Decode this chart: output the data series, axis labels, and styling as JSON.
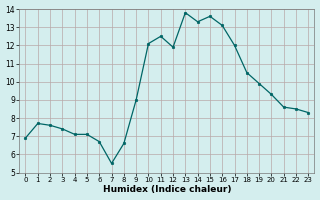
{
  "x": [
    0,
    1,
    2,
    3,
    4,
    5,
    6,
    7,
    8,
    9,
    10,
    11,
    12,
    13,
    14,
    15,
    16,
    17,
    18,
    19,
    20,
    21,
    22,
    23
  ],
  "y": [
    6.9,
    7.7,
    7.6,
    7.4,
    7.1,
    7.1,
    6.7,
    5.5,
    6.6,
    9.0,
    12.1,
    12.5,
    11.9,
    13.8,
    13.3,
    13.6,
    13.1,
    12.0,
    10.5,
    9.9,
    9.3,
    8.6,
    8.5,
    8.3
  ],
  "line_color": "#006666",
  "marker_color": "#006666",
  "bg_color": "#d4eeee",
  "grid_color": "#b8a8a8",
  "xlabel": "Humidex (Indice chaleur)",
  "ylim": [
    5,
    14
  ],
  "xlim": [
    -0.5,
    23.5
  ],
  "yticks": [
    5,
    6,
    7,
    8,
    9,
    10,
    11,
    12,
    13,
    14
  ],
  "xticks": [
    0,
    1,
    2,
    3,
    4,
    5,
    6,
    7,
    8,
    9,
    10,
    11,
    12,
    13,
    14,
    15,
    16,
    17,
    18,
    19,
    20,
    21,
    22,
    23
  ],
  "tick_fontsize": 5.0,
  "ylabel_fontsize": 5.5,
  "xlabel_fontsize": 6.5
}
